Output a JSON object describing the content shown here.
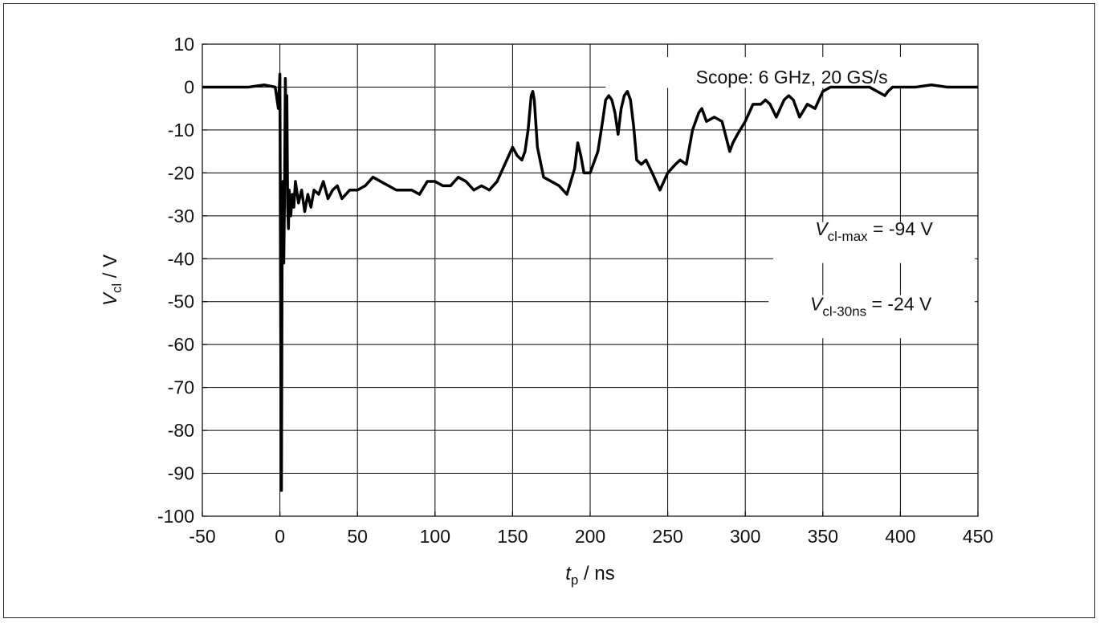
{
  "chart_data": {
    "type": "line",
    "x_label": {
      "symbol": "t",
      "subscript": "p",
      "unit": " / ns"
    },
    "y_label": {
      "symbol": "V",
      "subscript": "cl",
      "unit": " / V"
    },
    "xlim": [
      -50,
      450
    ],
    "ylim": [
      -100,
      10
    ],
    "x_ticks": [
      "-50",
      "0",
      "50",
      "100",
      "150",
      "200",
      "250",
      "300",
      "350",
      "400",
      "450"
    ],
    "y_ticks": [
      "10",
      "0",
      "-10",
      "-20",
      "-30",
      "-40",
      "-50",
      "-60",
      "-70",
      "-80",
      "-90",
      "-100"
    ],
    "grid": true,
    "line_color": "#000000",
    "annotations": {
      "scope": "Scope: 6 GHz, 20 GS/s",
      "vmax": {
        "symbol": "V",
        "subscript": "cl-max",
        "value": " = -94 V"
      },
      "v30": {
        "symbol": "V",
        "subscript": "cl-30ns",
        "value": " = -24 V"
      }
    },
    "series": [
      {
        "x": [
          -50,
          -40,
          -30,
          -20,
          -10,
          -3,
          -1,
          0,
          0.5,
          1,
          1.5,
          2,
          2.5,
          3,
          3.5,
          4,
          4.5,
          5,
          5.5,
          6,
          7,
          8,
          9,
          10,
          12,
          14,
          16,
          18,
          20,
          22,
          25,
          28,
          31,
          34,
          37,
          40,
          45,
          50,
          55,
          60,
          65,
          70,
          75,
          80,
          85,
          90,
          95,
          100,
          105,
          110,
          115,
          120,
          125,
          130,
          135,
          140,
          145,
          150,
          153,
          156,
          158,
          160,
          162,
          163,
          164,
          166,
          170,
          175,
          180,
          185,
          190,
          192,
          194,
          196,
          200,
          205,
          208,
          210,
          212,
          214,
          216,
          218,
          220,
          222,
          224,
          226,
          228,
          230,
          233,
          236,
          240,
          245,
          250,
          255,
          258,
          262,
          266,
          270,
          272,
          275,
          280,
          285,
          290,
          292,
          295,
          300,
          305,
          310,
          313,
          316,
          320,
          325,
          328,
          331,
          335,
          340,
          345,
          350,
          355,
          360,
          365,
          370,
          380,
          390,
          392,
          395,
          400,
          410,
          420,
          430,
          440,
          450
        ],
        "y": [
          0,
          0,
          0,
          0,
          0.5,
          0,
          -5,
          3,
          -55,
          -94,
          -30,
          -22,
          -41,
          -25,
          2,
          -10,
          -2,
          -28,
          -33,
          -24,
          -30,
          -25,
          -28,
          -22,
          -27,
          -24,
          -29,
          -25,
          -28,
          -24,
          -25,
          -22,
          -26,
          -24,
          -23,
          -26,
          -24,
          -24,
          -23,
          -21,
          -22,
          -23,
          -24,
          -24,
          -24,
          -25,
          -22,
          -22,
          -23,
          -23,
          -21,
          -22,
          -24,
          -23,
          -24,
          -22,
          -18,
          -14,
          -16,
          -17,
          -15,
          -10,
          -2,
          -1,
          -3,
          -14,
          -21,
          -22,
          -23,
          -25,
          -19,
          -13,
          -16,
          -20,
          -20,
          -15,
          -8,
          -3,
          -2,
          -3,
          -6,
          -11,
          -5,
          -2,
          -1,
          -3,
          -9,
          -17,
          -18,
          -17,
          -20,
          -24,
          -20,
          -18,
          -17,
          -18,
          -10,
          -6,
          -5,
          -8,
          -7,
          -8,
          -15,
          -13,
          -11,
          -8,
          -4,
          -4,
          -3,
          -4,
          -7,
          -3,
          -2,
          -3,
          -7,
          -4,
          -5,
          -1,
          0,
          0,
          0,
          0,
          0,
          -2,
          -1,
          0,
          0,
          0,
          0.5,
          0,
          0,
          0
        ]
      }
    ]
  }
}
